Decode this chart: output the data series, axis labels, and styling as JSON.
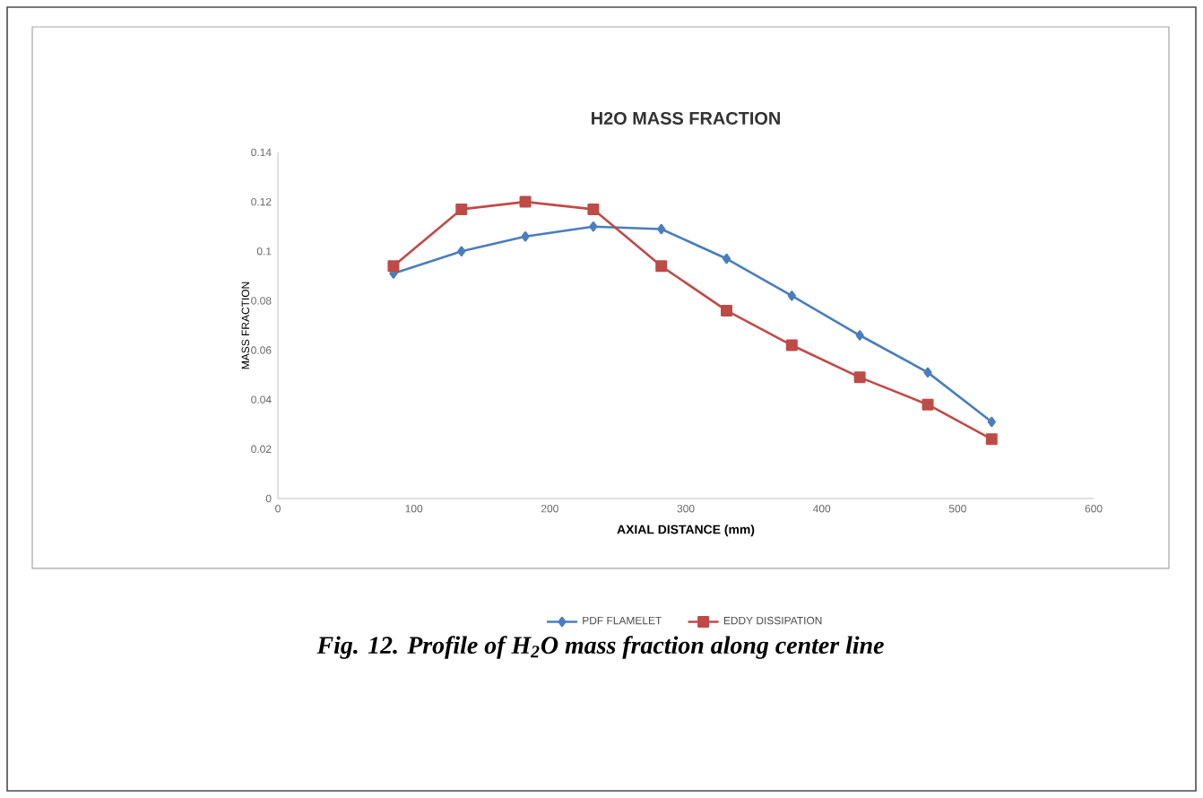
{
  "chart_data": {
    "type": "line",
    "title": "H2O MASS FRACTION",
    "xlabel": "AXIAL DISTANCE (mm)",
    "ylabel": "MASS FRACTION",
    "annotations": [
      "Fig.  12. Profile of H$_{2}$O mass fraction along center line"
    ],
    "xlim": [
      0,
      600
    ],
    "xticks": [
      0,
      100,
      200,
      300,
      400,
      500,
      600
    ],
    "ylim": [
      0,
      0.14
    ],
    "yticks": [
      0,
      0.02,
      0.04,
      0.06,
      0.08,
      0.1,
      0.12,
      0.14
    ],
    "grid": false,
    "legend": "bottom",
    "line_style": "solid",
    "series": [
      {
        "name": "PDF FLAMELET",
        "color": "#4a7ebb",
        "marker": "diamond",
        "x": [
          85,
          135,
          182,
          232,
          282,
          330,
          378,
          428,
          478,
          525
        ],
        "values": [
          0.091,
          0.1,
          0.106,
          0.11,
          0.109,
          0.097,
          0.082,
          0.066,
          0.051,
          0.031
        ]
      },
      {
        "name": "EDDY DISSIPATION",
        "color": "#be4b48",
        "marker": "square",
        "x": [
          85,
          135,
          182,
          232,
          282,
          330,
          378,
          428,
          478,
          525
        ],
        "values": [
          0.094,
          0.117,
          0.12,
          0.117,
          0.094,
          0.076,
          0.062,
          0.049,
          0.038,
          0.024
        ]
      }
    ]
  }
}
